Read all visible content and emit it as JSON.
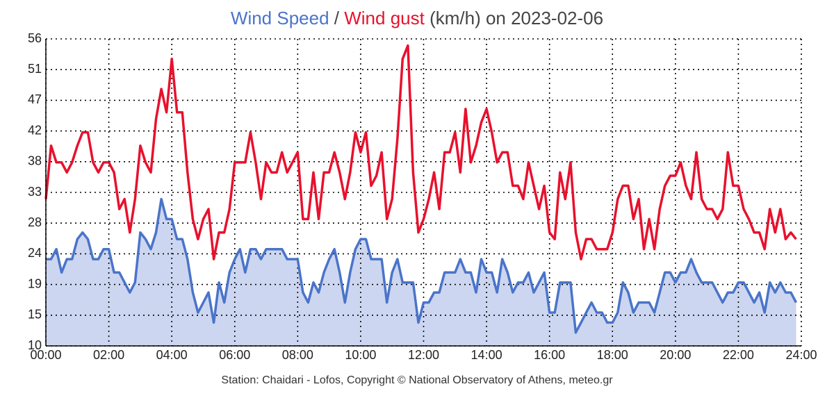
{
  "chart_data": {
    "type": "line",
    "title": "Wind Speed / Wind gust (km/h) on 2023-02-06",
    "footer": "Station: Chaidari - Lofos, Copyright © National Observatory of Athens, meteo.gr",
    "x": [
      "00:00",
      "00:10",
      "00:20",
      "00:30",
      "00:40",
      "00:50",
      "01:00",
      "01:10",
      "01:20",
      "01:30",
      "01:40",
      "01:50",
      "02:00",
      "02:10",
      "02:20",
      "02:30",
      "02:40",
      "02:50",
      "03:00",
      "03:10",
      "03:20",
      "03:30",
      "03:40",
      "03:50",
      "04:00",
      "04:10",
      "04:20",
      "04:30",
      "04:40",
      "04:50",
      "05:00",
      "05:10",
      "05:20",
      "05:30",
      "05:40",
      "05:50",
      "06:00",
      "06:10",
      "06:20",
      "06:30",
      "06:40",
      "06:50",
      "07:00",
      "07:10",
      "07:20",
      "07:30",
      "07:40",
      "07:50",
      "08:00",
      "08:10",
      "08:20",
      "08:30",
      "08:40",
      "08:50",
      "09:00",
      "09:10",
      "09:20",
      "09:30",
      "09:40",
      "09:50",
      "10:00",
      "10:10",
      "10:20",
      "10:30",
      "10:40",
      "10:50",
      "11:00",
      "11:10",
      "11:20",
      "11:30",
      "11:40",
      "11:50",
      "12:00",
      "12:10",
      "12:20",
      "12:30",
      "12:40",
      "12:50",
      "13:00",
      "13:10",
      "13:20",
      "13:30",
      "13:40",
      "13:50",
      "14:00",
      "14:10",
      "14:20",
      "14:30",
      "14:40",
      "14:50",
      "15:00",
      "15:10",
      "15:20",
      "15:30",
      "15:40",
      "15:50",
      "16:00",
      "16:10",
      "16:20",
      "16:30",
      "16:40",
      "16:50",
      "17:00",
      "17:10",
      "17:20",
      "17:30",
      "17:40",
      "17:50",
      "18:00",
      "18:10",
      "18:20",
      "18:30",
      "18:40",
      "18:50",
      "19:00",
      "19:10",
      "19:20",
      "19:30",
      "19:40",
      "19:50",
      "20:00",
      "20:10",
      "20:20",
      "20:30",
      "20:40",
      "20:50",
      "21:00",
      "21:10",
      "21:20",
      "21:30",
      "21:40",
      "21:50",
      "22:00",
      "22:10",
      "22:20",
      "22:30",
      "22:40",
      "22:50",
      "23:00",
      "23:10",
      "23:20",
      "23:30",
      "23:40",
      "23:50"
    ],
    "series": [
      {
        "name": "Wind Speed",
        "color": "#4a74c9",
        "fill": "#cdd6f0",
        "values": [
          23,
          23,
          24.5,
          21,
          23,
          23,
          26,
          27,
          26,
          23,
          23,
          24.5,
          24.5,
          21,
          21,
          19.5,
          18,
          19.5,
          27,
          26,
          24.5,
          27,
          32,
          29,
          29,
          26,
          26,
          23,
          18,
          15,
          16.5,
          18,
          13.5,
          19.5,
          16.5,
          21,
          23,
          24.5,
          21,
          24.5,
          24.5,
          23,
          24.5,
          24.5,
          24.5,
          24.5,
          23,
          23,
          23,
          18,
          16.5,
          19.5,
          18,
          21,
          23,
          24.5,
          21,
          16.5,
          21,
          24.5,
          26,
          26,
          23,
          23,
          23,
          16.5,
          21,
          23,
          19.5,
          19.5,
          19.5,
          13.5,
          16.5,
          16.5,
          18,
          18,
          21,
          21,
          21,
          23,
          21,
          21,
          18,
          23,
          21,
          21,
          18,
          23,
          21,
          18,
          19.5,
          19.5,
          21,
          18,
          19.5,
          21,
          15,
          15,
          19.5,
          19.5,
          19.5,
          12,
          13.5,
          15,
          16.5,
          15,
          15,
          13.5,
          13.5,
          15,
          19.5,
          18,
          15,
          16.5,
          16.5,
          16.5,
          15,
          18,
          21,
          21,
          19.5,
          21,
          21,
          23,
          21,
          19.5,
          19.5,
          19.5,
          18,
          16.5,
          18,
          18,
          19.5,
          19.5,
          18,
          16.5,
          18,
          15,
          19.5,
          18,
          19.5,
          18,
          18,
          16.5
        ]
      },
      {
        "name": "Wind gust",
        "color": "#e8112d",
        "values": [
          32,
          40,
          37.5,
          37.5,
          36,
          37.5,
          40,
          42,
          42,
          37.5,
          36,
          37.5,
          37.5,
          36,
          30.5,
          32,
          27,
          32,
          40,
          37.5,
          36,
          44,
          48.5,
          45,
          53,
          45,
          45,
          36,
          29,
          26,
          29,
          30.5,
          23,
          27,
          27,
          30.5,
          37.5,
          37.5,
          37.5,
          42,
          37.5,
          32,
          37.5,
          36,
          36,
          39,
          36,
          37.5,
          39,
          29,
          29,
          36,
          29,
          36,
          36,
          39,
          36,
          32,
          36,
          42,
          39,
          42,
          34,
          35.5,
          39,
          29,
          32,
          41,
          53,
          55,
          36,
          27,
          29,
          32,
          36,
          30.5,
          39,
          39,
          42,
          36,
          45.5,
          37.5,
          40,
          43.5,
          45.5,
          42,
          37.5,
          39,
          39,
          34,
          34,
          32,
          37.5,
          34,
          30.5,
          34,
          27,
          26,
          36,
          32,
          37.5,
          27,
          23,
          26,
          26,
          24.5,
          24.5,
          24.5,
          27,
          32,
          34,
          34,
          29,
          32,
          24.5,
          29,
          24.5,
          30.5,
          34,
          35.5,
          35.5,
          37.5,
          34,
          32,
          39,
          32,
          30.5,
          30.5,
          29,
          30.5,
          39,
          34,
          34,
          30.5,
          29,
          27,
          27,
          24.5,
          30.5,
          27,
          30.5,
          26,
          27,
          26
        ]
      }
    ],
    "xlim": [
      "00:00",
      "24:00"
    ],
    "xticks": [
      "00:00",
      "02:00",
      "04:00",
      "06:00",
      "08:00",
      "10:00",
      "12:00",
      "14:00",
      "16:00",
      "18:00",
      "20:00",
      "22:00",
      "24:00"
    ],
    "ylim": [
      10,
      56
    ],
    "yticks": [
      10,
      {
        "value": 14.6,
        "label": "15"
      },
      {
        "value": 19.2,
        "label": "19"
      },
      {
        "value": 23.8,
        "label": "24"
      },
      {
        "value": 28.4,
        "label": "28"
      },
      33,
      {
        "value": 37.6,
        "label": "38"
      },
      {
        "value": 42.2,
        "label": "42"
      },
      {
        "value": 46.8,
        "label": "47"
      },
      {
        "value": 51.4,
        "label": "51"
      },
      56
    ],
    "grid": true
  }
}
